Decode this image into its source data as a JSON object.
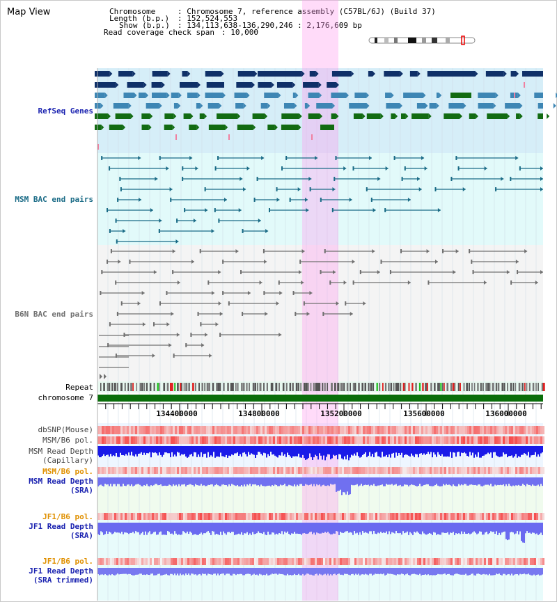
{
  "title": "Map View",
  "header": {
    "chromosome_label": "Chromosome",
    "chromosome_value": ": Chromosome 7, reference assembly (C57BL/6J) (Build 37)",
    "length_label": "Length (b.p.)",
    "length_value": ": 152,524,553",
    "show_label": "Show (b.p.)",
    "show_value": ": 134,113,638-136,290,246 : 2,176,609 bp",
    "coverage_label": "Read coverage check span",
    "coverage_value": ": 10,000"
  },
  "tracks": {
    "refseq": "RefSeq Genes",
    "msm_bac": "MSM BAC end pairs",
    "b6n_bac": "B6N BAC end pairs",
    "repeat": "Repeat",
    "chrom": "chromosome 7",
    "dbsnp": "dbSNP(Mouse)",
    "msm_pol1": "MSM/B6 pol.",
    "msm_depth_cap_1": "MSM Read Depth",
    "msm_depth_cap_2": "(Capillary)",
    "msm_pol2": "MSM/B6 pol.",
    "msm_depth_sra_1": "MSM Read Depth",
    "msm_depth_sra_2": "(SRA)",
    "jf1_pol1": "JF1/B6 pol.",
    "jf1_depth_sra_1": "JF1 Read Depth",
    "jf1_depth_sra_2": "(SRA)",
    "jf1_pol2": "JF1/B6 pol.",
    "jf1_depth_trim_1": "JF1 Read Depth",
    "jf1_depth_trim_2": "(SRA trimmed)"
  },
  "ruler_ticks": [
    "134400000",
    "134800000",
    "135200000",
    "135600000",
    "136000000"
  ],
  "colors": {
    "refseq_dark": "#0f3068",
    "refseq_mid": "#3d86b4",
    "refseq_green": "#126b12",
    "msm_bac": "#1a6b86",
    "b6n_bac": "#707070",
    "highlight": "#ff99ee",
    "label_blue": "#1a22b0",
    "label_orange": "#e09000",
    "label_teal": "#1a6b86"
  }
}
